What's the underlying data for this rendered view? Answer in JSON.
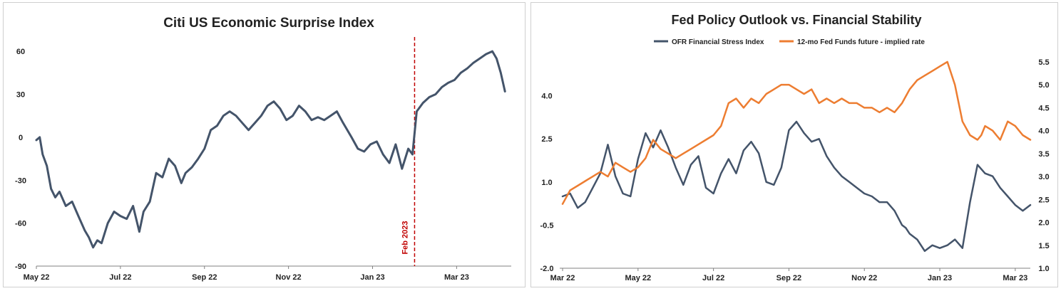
{
  "chart_data": [
    {
      "type": "line",
      "title": "Citi US Economic Surprise Index",
      "xlabel": "",
      "ylabel": "",
      "ylim": [
        -90,
        70
      ],
      "yticks": [
        -90,
        -60,
        -30,
        0,
        30,
        60
      ],
      "ytick_labels": [
        "-90",
        "-60",
        "-30",
        "0",
        "30",
        "60"
      ],
      "xlim": [
        0,
        11.3
      ],
      "xticks": [
        0,
        2,
        4,
        6,
        8,
        10
      ],
      "xtick_labels": [
        "May 22",
        "Jul 22",
        "Sep 22",
        "Nov 22",
        "Jan 23",
        "Mar 23"
      ],
      "grid": false,
      "series": [
        {
          "name": "Citi US Economic Surprise Index",
          "color": "#44546a",
          "x": [
            0,
            0.08,
            0.15,
            0.25,
            0.35,
            0.45,
            0.55,
            0.7,
            0.85,
            1.0,
            1.15,
            1.25,
            1.35,
            1.45,
            1.55,
            1.7,
            1.85,
            2.0,
            2.15,
            2.3,
            2.45,
            2.55,
            2.7,
            2.85,
            3.0,
            3.15,
            3.3,
            3.45,
            3.55,
            3.7,
            3.85,
            4.0,
            4.15,
            4.3,
            4.45,
            4.6,
            4.75,
            4.9,
            5.05,
            5.2,
            5.35,
            5.5,
            5.65,
            5.8,
            5.95,
            6.1,
            6.25,
            6.4,
            6.55,
            6.7,
            6.85,
            7.0,
            7.15,
            7.3,
            7.5,
            7.65,
            7.8,
            7.95,
            8.1,
            8.25,
            8.4,
            8.55,
            8.7,
            8.85,
            8.95,
            9.05,
            9.2,
            9.35,
            9.5,
            9.65,
            9.8,
            9.95,
            10.1,
            10.25,
            10.4,
            10.55,
            10.7,
            10.85,
            10.95,
            11.05,
            11.15
          ],
          "values": [
            -2,
            0,
            -12,
            -20,
            -36,
            -42,
            -38,
            -48,
            -45,
            -55,
            -65,
            -70,
            -77,
            -72,
            -74,
            -60,
            -52,
            -55,
            -57,
            -48,
            -66,
            -52,
            -45,
            -25,
            -28,
            -15,
            -20,
            -32,
            -25,
            -21,
            -15,
            -8,
            5,
            8,
            15,
            18,
            15,
            10,
            5,
            10,
            15,
            22,
            25,
            20,
            12,
            15,
            22,
            18,
            12,
            14,
            12,
            15,
            18,
            10,
            0,
            -8,
            -10,
            -5,
            -3,
            -12,
            -18,
            -5,
            -22,
            -8,
            -12,
            18,
            24,
            28,
            30,
            35,
            38,
            40,
            45,
            48,
            52,
            55,
            58,
            60,
            55,
            45,
            32
          ],
          "line_width": 3
        }
      ],
      "annotations": [
        {
          "type": "vline",
          "x": 9.0,
          "label": "Feb 2023",
          "color": "#c00000",
          "style": "dashed"
        }
      ]
    },
    {
      "type": "line",
      "title": "Fed Policy Outlook vs. Financial Stability",
      "xlabel": "",
      "ylabel": "",
      "ylim": [
        -2.0,
        5.5
      ],
      "yticks": [
        -2.0,
        -0.5,
        1.0,
        2.5,
        4.0
      ],
      "ytick_labels": [
        "-2.0",
        "-0.5",
        "1.0",
        "2.5",
        "4.0"
      ],
      "y2lim": [
        1.0,
        5.7
      ],
      "y2ticks": [
        1.0,
        1.5,
        2.0,
        2.5,
        3.0,
        3.5,
        4.0,
        4.5,
        5.0,
        5.5
      ],
      "y2tick_labels": [
        "1.0",
        "1.5",
        "2.0",
        "2.5",
        "3.0",
        "3.5",
        "4.0",
        "4.5",
        "5.0",
        "5.5"
      ],
      "xlim": [
        0,
        12.4
      ],
      "xticks": [
        0,
        2,
        4,
        6,
        8,
        10,
        12
      ],
      "xtick_labels": [
        "Mar 22",
        "May 22",
        "Jul 22",
        "Sep 22",
        "Nov 22",
        "Jan 23",
        "Mar 23"
      ],
      "grid": false,
      "legend": "top",
      "series": [
        {
          "name": "OFR Financial Stress Index",
          "axis": "left",
          "color": "#44546a",
          "x": [
            0,
            0.2,
            0.4,
            0.6,
            0.8,
            1.0,
            1.2,
            1.4,
            1.6,
            1.8,
            2.0,
            2.2,
            2.4,
            2.6,
            2.8,
            3.0,
            3.2,
            3.4,
            3.6,
            3.8,
            4.0,
            4.2,
            4.4,
            4.6,
            4.8,
            5.0,
            5.2,
            5.4,
            5.6,
            5.8,
            6.0,
            6.2,
            6.4,
            6.6,
            6.8,
            7.0,
            7.2,
            7.4,
            7.6,
            7.8,
            8.0,
            8.2,
            8.4,
            8.6,
            8.8,
            9.0,
            9.1,
            9.2,
            9.4,
            9.6,
            9.8,
            10.0,
            10.2,
            10.4,
            10.6,
            10.8,
            11.0,
            11.2,
            11.4,
            11.6,
            11.8,
            12.0,
            12.2,
            12.4
          ],
          "values": [
            0.5,
            0.6,
            0.1,
            0.3,
            0.8,
            1.3,
            2.3,
            1.2,
            0.6,
            0.5,
            1.8,
            2.7,
            2.2,
            2.8,
            2.2,
            1.5,
            0.9,
            1.6,
            1.9,
            0.8,
            0.6,
            1.3,
            1.8,
            1.3,
            2.1,
            2.4,
            2.0,
            1.0,
            0.9,
            1.5,
            2.8,
            3.1,
            2.7,
            2.4,
            2.5,
            1.9,
            1.5,
            1.2,
            1.0,
            0.8,
            0.6,
            0.5,
            0.3,
            0.3,
            0.0,
            -0.5,
            -0.6,
            -0.8,
            -1.0,
            -1.4,
            -1.2,
            -1.3,
            -1.2,
            -1.0,
            -1.3,
            0.3,
            1.6,
            1.3,
            1.2,
            0.8,
            0.5,
            0.2,
            0.0,
            0.2
          ],
          "line_width": 2.5
        },
        {
          "name": "12-mo Fed Funds future - implied rate",
          "axis": "right",
          "color": "#ed7d31",
          "x": [
            0,
            0.2,
            0.4,
            0.6,
            0.8,
            1.0,
            1.2,
            1.4,
            1.6,
            1.8,
            2.0,
            2.2,
            2.4,
            2.6,
            2.8,
            3.0,
            3.2,
            3.4,
            3.6,
            3.8,
            4.0,
            4.2,
            4.4,
            4.6,
            4.8,
            5.0,
            5.2,
            5.4,
            5.6,
            5.8,
            6.0,
            6.2,
            6.4,
            6.6,
            6.8,
            7.0,
            7.2,
            7.4,
            7.6,
            7.8,
            8.0,
            8.2,
            8.4,
            8.6,
            8.8,
            9.0,
            9.2,
            9.4,
            9.6,
            9.8,
            10.0,
            10.2,
            10.4,
            10.6,
            10.8,
            11.0,
            11.1,
            11.2,
            11.4,
            11.6,
            11.8,
            12.0,
            12.2,
            12.4
          ],
          "values": [
            2.4,
            2.7,
            2.8,
            2.9,
            3.0,
            3.1,
            3.0,
            3.3,
            3.2,
            3.1,
            3.2,
            3.4,
            3.8,
            3.6,
            3.5,
            3.4,
            3.5,
            3.6,
            3.7,
            3.8,
            3.9,
            4.1,
            4.6,
            4.7,
            4.5,
            4.7,
            4.6,
            4.8,
            4.9,
            5.0,
            5.0,
            4.9,
            4.8,
            4.9,
            4.6,
            4.7,
            4.6,
            4.7,
            4.6,
            4.6,
            4.5,
            4.5,
            4.4,
            4.5,
            4.4,
            4.6,
            4.9,
            5.1,
            5.2,
            5.3,
            5.4,
            5.5,
            5.0,
            4.2,
            3.9,
            3.8,
            3.9,
            4.1,
            4.0,
            3.8,
            4.2,
            4.1,
            3.9,
            3.8
          ],
          "line_width": 2.5
        }
      ]
    }
  ]
}
